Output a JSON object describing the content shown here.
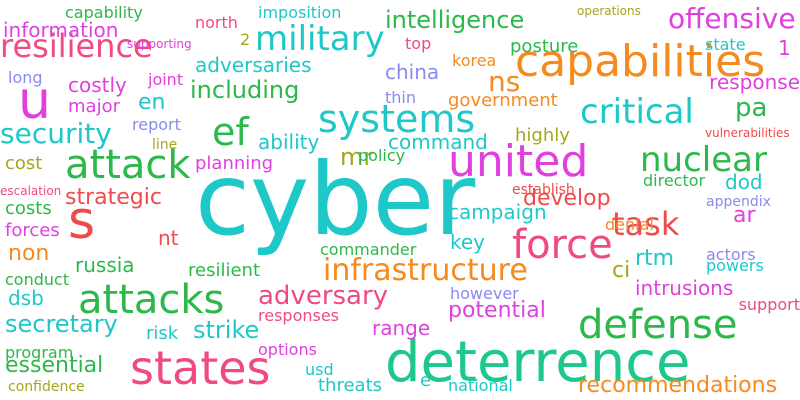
{
  "words": [
    {
      "text": "cyber",
      "color": "#1fc8c8"
    },
    {
      "text": "deterrence",
      "color": "#1dc98a"
    },
    {
      "text": "united",
      "color": "#e040e0"
    },
    {
      "text": "capabilities",
      "color": "#f58a1f"
    },
    {
      "text": "attack",
      "color": "#2cb84a"
    },
    {
      "text": "s",
      "color": "#f04a4a"
    },
    {
      "text": "u",
      "color": "#e040e0"
    },
    {
      "text": "states",
      "color": "#f04a80"
    },
    {
      "text": "attacks",
      "color": "#2cb84a"
    },
    {
      "text": "defense",
      "color": "#2cb84a"
    },
    {
      "text": "force",
      "color": "#f04a80"
    },
    {
      "text": "nuclear",
      "color": "#2cb84a"
    },
    {
      "text": "systems",
      "color": "#1fc8c8"
    },
    {
      "text": "military",
      "color": "#1fc8c8"
    },
    {
      "text": "critical",
      "color": "#1fc8c8"
    },
    {
      "text": "infrastructure",
      "color": "#f58a1f"
    },
    {
      "text": "task",
      "color": "#f04a4a"
    },
    {
      "text": "ef",
      "color": "#2cb84a"
    },
    {
      "text": "resilience",
      "color": "#f04a80"
    },
    {
      "text": "security",
      "color": "#1fc8c8"
    },
    {
      "text": "adversary",
      "color": "#f04a80"
    },
    {
      "text": "offensive",
      "color": "#e040e0"
    },
    {
      "text": "intelligence",
      "color": "#2cb84a"
    },
    {
      "text": "including",
      "color": "#2cb84a"
    },
    {
      "text": "secretary",
      "color": "#1fc8c8"
    },
    {
      "text": "strike",
      "color": "#1fc8c8"
    },
    {
      "text": "potential",
      "color": "#e040e0"
    },
    {
      "text": "essential",
      "color": "#2cb84a"
    },
    {
      "text": "develop",
      "color": "#f04a4a"
    },
    {
      "text": "strategic",
      "color": "#f04a4a"
    },
    {
      "text": "recommendations",
      "color": "#f58a1f"
    },
    {
      "text": "information",
      "color": "#e040e0"
    },
    {
      "text": "adversaries",
      "color": "#1fc8c8"
    },
    {
      "text": "campaign",
      "color": "#1fc8c8"
    },
    {
      "text": "dod",
      "color": "#1fc8c8"
    },
    {
      "text": "ns",
      "color": "#f58a1f"
    },
    {
      "text": "pa",
      "color": "#2cb84a"
    },
    {
      "text": "en",
      "color": "#1fc8c8"
    },
    {
      "text": "mr",
      "color": "#a6a61e"
    },
    {
      "text": "ar",
      "color": "#e040e0"
    },
    {
      "text": "ci",
      "color": "#a6a61e"
    },
    {
      "text": "nt",
      "color": "#f04a4a"
    },
    {
      "text": "rtm",
      "color": "#1fc8c8"
    },
    {
      "text": "intrusions",
      "color": "#e040e0"
    },
    {
      "text": "russia",
      "color": "#2cb84a"
    },
    {
      "text": "dsb",
      "color": "#1fc8c8"
    },
    {
      "text": "range",
      "color": "#e040e0"
    },
    {
      "text": "china",
      "color": "#8a8af0"
    },
    {
      "text": "costly",
      "color": "#e040e0"
    },
    {
      "text": "response",
      "color": "#e040e0"
    },
    {
      "text": "ability",
      "color": "#1fc8c8"
    },
    {
      "text": "government",
      "color": "#f58a1f"
    },
    {
      "text": "posture",
      "color": "#2cb84a"
    },
    {
      "text": "command",
      "color": "#1fc8c8"
    },
    {
      "text": "resilient",
      "color": "#2cb84a"
    },
    {
      "text": "planning",
      "color": "#e040e0"
    },
    {
      "text": "key",
      "color": "#1fc8c8"
    },
    {
      "text": "non",
      "color": "#f58a1f"
    },
    {
      "text": "forces",
      "color": "#e040e0"
    },
    {
      "text": "costs",
      "color": "#2cb84a"
    },
    {
      "text": "cost",
      "color": "#a6a61e"
    },
    {
      "text": "major",
      "color": "#e040e0"
    },
    {
      "text": "long",
      "color": "#8a8af0"
    },
    {
      "text": "joint",
      "color": "#e040e0"
    },
    {
      "text": "report",
      "color": "#8a8af0"
    },
    {
      "text": "line",
      "color": "#a6a61e"
    },
    {
      "text": "north",
      "color": "#f04a80"
    },
    {
      "text": "imposition",
      "color": "#1fc8c8"
    },
    {
      "text": "capability",
      "color": "#2cb84a"
    },
    {
      "text": "top",
      "color": "#f04a80"
    },
    {
      "text": "korea",
      "color": "#f58a1f"
    },
    {
      "text": "thin",
      "color": "#8a8af0"
    },
    {
      "text": "highly",
      "color": "#a6a61e"
    },
    {
      "text": "policy",
      "color": "#2cb84a"
    },
    {
      "text": "director",
      "color": "#2cb84a"
    },
    {
      "text": "establish",
      "color": "#f04a4a"
    },
    {
      "text": "appendix",
      "color": "#8a8af0"
    },
    {
      "text": "denial",
      "color": "#f58a1f"
    },
    {
      "text": "actors",
      "color": "#8a8af0"
    },
    {
      "text": "powers",
      "color": "#1fc8c8"
    },
    {
      "text": "support",
      "color": "#f04a80"
    },
    {
      "text": "however",
      "color": "#8a8af0"
    },
    {
      "text": "responses",
      "color": "#f04a80"
    },
    {
      "text": "options",
      "color": "#e040e0"
    },
    {
      "text": "usd",
      "color": "#1fc8c8"
    },
    {
      "text": "threats",
      "color": "#1fc8c8"
    },
    {
      "text": "national",
      "color": "#1fc8c8"
    },
    {
      "text": "e",
      "color": "#1fc8c8"
    },
    {
      "text": "risk",
      "color": "#1fc8c8"
    },
    {
      "text": "program",
      "color": "#2cb84a"
    },
    {
      "text": "conduct",
      "color": "#2cb84a"
    },
    {
      "text": "confidence",
      "color": "#a6a61e"
    },
    {
      "text": "commander",
      "color": "#2cb84a"
    },
    {
      "text": "escalation",
      "color": "#f04a80"
    },
    {
      "text": "vulnerabilities",
      "color": "#f04a4a"
    },
    {
      "text": "state",
      "color": "#1fc8c8"
    },
    {
      "text": "operations",
      "color": "#a6a61e"
    },
    {
      "text": "supporting",
      "color": "#e040e0"
    },
    {
      "text": "2",
      "color": "#a6a61e"
    },
    {
      "text": "1",
      "color": "#e040e0"
    }
  ]
}
